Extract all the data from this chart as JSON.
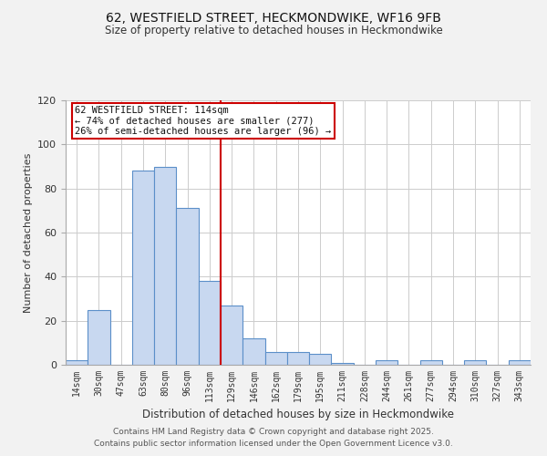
{
  "title": "62, WESTFIELD STREET, HECKMONDWIKE, WF16 9FB",
  "subtitle": "Size of property relative to detached houses in Heckmondwike",
  "xlabel": "Distribution of detached houses by size in Heckmondwike",
  "ylabel": "Number of detached properties",
  "bin_labels": [
    "14sqm",
    "30sqm",
    "47sqm",
    "63sqm",
    "80sqm",
    "96sqm",
    "113sqm",
    "129sqm",
    "146sqm",
    "162sqm",
    "179sqm",
    "195sqm",
    "211sqm",
    "228sqm",
    "244sqm",
    "261sqm",
    "277sqm",
    "294sqm",
    "310sqm",
    "327sqm",
    "343sqm"
  ],
  "bar_heights": [
    2,
    25,
    0,
    88,
    90,
    71,
    38,
    27,
    12,
    6,
    6,
    5,
    1,
    0,
    2,
    0,
    2,
    0,
    2,
    0,
    2
  ],
  "bar_color": "#c8d8f0",
  "bar_edge_color": "#5b8fc9",
  "vline_x_index": 6,
  "vline_color": "#cc0000",
  "annotation_title": "62 WESTFIELD STREET: 114sqm",
  "annotation_line1": "← 74% of detached houses are smaller (277)",
  "annotation_line2": "26% of semi-detached houses are larger (96) →",
  "footer1": "Contains HM Land Registry data © Crown copyright and database right 2025.",
  "footer2": "Contains public sector information licensed under the Open Government Licence v3.0.",
  "ylim": [
    0,
    120
  ],
  "background_color": "#f2f2f2",
  "plot_bg_color": "#ffffff",
  "grid_color": "#cccccc"
}
